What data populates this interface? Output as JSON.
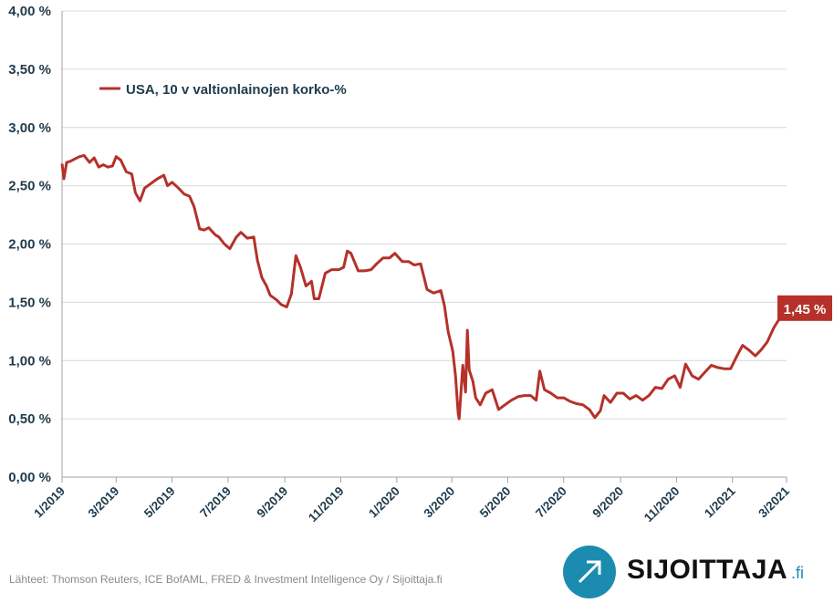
{
  "chart_data": {
    "type": "line",
    "title": "",
    "xlabel": "",
    "ylabel": "",
    "ylim": [
      0,
      4
    ],
    "y_ticks": [
      "0,00 %",
      "0,50 %",
      "1,00 %",
      "1,50 %",
      "2,00 %",
      "2,50 %",
      "3,00 %",
      "3,50 %",
      "4,00 %"
    ],
    "x_ticks": [
      "1/2019",
      "3/2019",
      "5/2019",
      "7/2019",
      "9/2019",
      "11/2019",
      "1/2020",
      "3/2020",
      "5/2020",
      "7/2020",
      "9/2020",
      "11/2020",
      "1/2021",
      "3/2021"
    ],
    "grid": true,
    "legend_position": "top-left",
    "line_color": "#b5312a",
    "series": [
      {
        "name": "USA, 10 v valtionlainojen korko-%",
        "points": [
          [
            "2019-01-01",
            2.69
          ],
          [
            "2019-01-03",
            2.56
          ],
          [
            "2019-01-06",
            2.7
          ],
          [
            "2019-01-10",
            2.71
          ],
          [
            "2019-01-15",
            2.73
          ],
          [
            "2019-01-20",
            2.75
          ],
          [
            "2019-01-25",
            2.76
          ],
          [
            "2019-01-31",
            2.7
          ],
          [
            "2019-02-05",
            2.74
          ],
          [
            "2019-02-10",
            2.66
          ],
          [
            "2019-02-15",
            2.68
          ],
          [
            "2019-02-20",
            2.66
          ],
          [
            "2019-02-25",
            2.67
          ],
          [
            "2019-03-01",
            2.75
          ],
          [
            "2019-03-06",
            2.72
          ],
          [
            "2019-03-12",
            2.62
          ],
          [
            "2019-03-18",
            2.6
          ],
          [
            "2019-03-22",
            2.44
          ],
          [
            "2019-03-27",
            2.37
          ],
          [
            "2019-04-01",
            2.48
          ],
          [
            "2019-04-08",
            2.52
          ],
          [
            "2019-04-15",
            2.56
          ],
          [
            "2019-04-22",
            2.59
          ],
          [
            "2019-04-26",
            2.5
          ],
          [
            "2019-05-01",
            2.53
          ],
          [
            "2019-05-08",
            2.48
          ],
          [
            "2019-05-14",
            2.43
          ],
          [
            "2019-05-20",
            2.41
          ],
          [
            "2019-05-25",
            2.32
          ],
          [
            "2019-05-31",
            2.13
          ],
          [
            "2019-06-05",
            2.12
          ],
          [
            "2019-06-10",
            2.14
          ],
          [
            "2019-06-17",
            2.08
          ],
          [
            "2019-06-21",
            2.06
          ],
          [
            "2019-06-27",
            2.0
          ],
          [
            "2019-07-03",
            1.96
          ],
          [
            "2019-07-10",
            2.06
          ],
          [
            "2019-07-15",
            2.1
          ],
          [
            "2019-07-22",
            2.05
          ],
          [
            "2019-07-29",
            2.06
          ],
          [
            "2019-08-02",
            1.86
          ],
          [
            "2019-08-07",
            1.71
          ],
          [
            "2019-08-12",
            1.64
          ],
          [
            "2019-08-16",
            1.56
          ],
          [
            "2019-08-23",
            1.52
          ],
          [
            "2019-08-28",
            1.48
          ],
          [
            "2019-09-03",
            1.46
          ],
          [
            "2019-09-08",
            1.57
          ],
          [
            "2019-09-13",
            1.9
          ],
          [
            "2019-09-18",
            1.8
          ],
          [
            "2019-09-24",
            1.64
          ],
          [
            "2019-09-30",
            1.68
          ],
          [
            "2019-10-03",
            1.53
          ],
          [
            "2019-10-08",
            1.53
          ],
          [
            "2019-10-15",
            1.75
          ],
          [
            "2019-10-22",
            1.78
          ],
          [
            "2019-10-30",
            1.78
          ],
          [
            "2019-11-04",
            1.8
          ],
          [
            "2019-11-08",
            1.94
          ],
          [
            "2019-11-12",
            1.92
          ],
          [
            "2019-11-20",
            1.77
          ],
          [
            "2019-11-27",
            1.77
          ],
          [
            "2019-12-04",
            1.78
          ],
          [
            "2019-12-10",
            1.83
          ],
          [
            "2019-12-17",
            1.88
          ],
          [
            "2019-12-24",
            1.88
          ],
          [
            "2019-12-30",
            1.92
          ],
          [
            "2020-01-07",
            1.85
          ],
          [
            "2020-01-14",
            1.85
          ],
          [
            "2020-01-20",
            1.82
          ],
          [
            "2020-01-27",
            1.83
          ],
          [
            "2020-02-03",
            1.61
          ],
          [
            "2020-02-10",
            1.58
          ],
          [
            "2020-02-18",
            1.6
          ],
          [
            "2020-02-22",
            1.47
          ],
          [
            "2020-02-26",
            1.25
          ],
          [
            "2020-03-02",
            1.08
          ],
          [
            "2020-03-05",
            0.87
          ],
          [
            "2020-03-08",
            0.54
          ],
          [
            "2020-03-09",
            0.5
          ],
          [
            "2020-03-13",
            0.96
          ],
          [
            "2020-03-16",
            0.73
          ],
          [
            "2020-03-18",
            1.26
          ],
          [
            "2020-03-20",
            0.92
          ],
          [
            "2020-03-24",
            0.82
          ],
          [
            "2020-03-27",
            0.68
          ],
          [
            "2020-04-01",
            0.62
          ],
          [
            "2020-04-07",
            0.72
          ],
          [
            "2020-04-14",
            0.75
          ],
          [
            "2020-04-21",
            0.58
          ],
          [
            "2020-04-28",
            0.62
          ],
          [
            "2020-05-05",
            0.66
          ],
          [
            "2020-05-12",
            0.69
          ],
          [
            "2020-05-19",
            0.7
          ],
          [
            "2020-05-26",
            0.7
          ],
          [
            "2020-06-01",
            0.66
          ],
          [
            "2020-06-05",
            0.91
          ],
          [
            "2020-06-10",
            0.75
          ],
          [
            "2020-06-17",
            0.72
          ],
          [
            "2020-06-24",
            0.68
          ],
          [
            "2020-07-01",
            0.68
          ],
          [
            "2020-07-08",
            0.65
          ],
          [
            "2020-07-15",
            0.63
          ],
          [
            "2020-07-22",
            0.62
          ],
          [
            "2020-07-29",
            0.58
          ],
          [
            "2020-08-04",
            0.51
          ],
          [
            "2020-08-10",
            0.57
          ],
          [
            "2020-08-14",
            0.7
          ],
          [
            "2020-08-21",
            0.64
          ],
          [
            "2020-08-28",
            0.72
          ],
          [
            "2020-09-04",
            0.72
          ],
          [
            "2020-09-11",
            0.67
          ],
          [
            "2020-09-18",
            0.7
          ],
          [
            "2020-09-25",
            0.66
          ],
          [
            "2020-10-02",
            0.7
          ],
          [
            "2020-10-09",
            0.77
          ],
          [
            "2020-10-16",
            0.76
          ],
          [
            "2020-10-23",
            0.84
          ],
          [
            "2020-10-30",
            0.87
          ],
          [
            "2020-11-05",
            0.77
          ],
          [
            "2020-11-11",
            0.97
          ],
          [
            "2020-11-18",
            0.87
          ],
          [
            "2020-11-25",
            0.84
          ],
          [
            "2020-12-02",
            0.9
          ],
          [
            "2020-12-09",
            0.96
          ],
          [
            "2020-12-16",
            0.94
          ],
          [
            "2020-12-23",
            0.93
          ],
          [
            "2020-12-30",
            0.93
          ],
          [
            "2021-01-06",
            1.04
          ],
          [
            "2021-01-12",
            1.13
          ],
          [
            "2021-01-19",
            1.09
          ],
          [
            "2021-01-26",
            1.04
          ],
          [
            "2021-02-01",
            1.09
          ],
          [
            "2021-02-08",
            1.16
          ],
          [
            "2021-02-15",
            1.28
          ],
          [
            "2021-02-22",
            1.37
          ],
          [
            "2021-02-28",
            1.45
          ]
        ]
      }
    ],
    "annotations": [
      {
        "text": "1,45 %",
        "x": "2021-02-28",
        "y": 1.45
      }
    ]
  },
  "source_text": "Lähteet: Thomson Reuters, ICE BofAML, FRED & Investment Intelligence Oy / Sijoittaja.fi",
  "logo": {
    "name": "SIJOITTAJA",
    "suffix": ".fi",
    "icon": "arrow-up-right-icon",
    "brand_color": "#1b8cb0"
  }
}
